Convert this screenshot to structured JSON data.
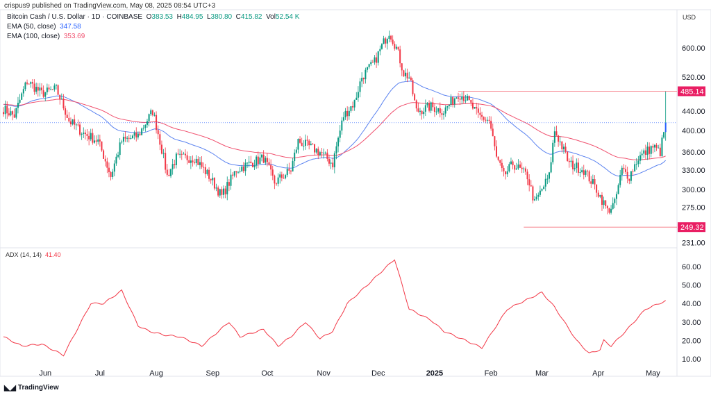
{
  "header": {
    "published": "crispus9 published on TradingView.com, May 08, 2025 08:54 UTC+3",
    "symbol": "Bitcoin Cash / U.S. Dollar · 1D · COINBASE",
    "o_label": "O",
    "o": "383.53",
    "h_label": "H",
    "h": "484.95",
    "l_label": "L",
    "l": "380.80",
    "c_label": "C",
    "c": "415.82",
    "vol_label": "Vol",
    "vol": "52.54 K",
    "ema50_label": "EMA (50, close)",
    "ema50": "347.58",
    "ema100_label": "EMA (100, close)",
    "ema100": "353.69"
  },
  "currency": "USD",
  "adx_label": "ADX (14, 14)",
  "adx_value": "41.40",
  "brand": "TradingView",
  "colors": {
    "up": "#089981",
    "down": "#f23645",
    "ema50": "#5b83f0",
    "ema100": "#f0506e",
    "adx": "#f23645",
    "last": "#2962ff"
  },
  "chart_data": {
    "type": "candlestick",
    "price_axis": {
      "scale": "log",
      "ticks": [
        "600.00",
        "520.00",
        "440.00",
        "400.00",
        "360.00",
        "330.00",
        "300.00",
        "275.00",
        "231.00"
      ],
      "marked": [
        "485.14",
        "249.32"
      ],
      "last": 415.82
    },
    "x_ticks": [
      "Jun",
      "Jul",
      "Aug",
      "Sep",
      "Oct",
      "Nov",
      "Dec",
      "2025",
      "Feb",
      "Mar",
      "Apr",
      "May"
    ],
    "price_path_day_close": [
      [
        0,
        445
      ],
      [
        6,
        430
      ],
      [
        13,
        510
      ],
      [
        21,
        480
      ],
      [
        29,
        490
      ],
      [
        36,
        420
      ],
      [
        44,
        395
      ],
      [
        52,
        380
      ],
      [
        59,
        320
      ],
      [
        65,
        380
      ],
      [
        74,
        390
      ],
      [
        82,
        440
      ],
      [
        90,
        320
      ],
      [
        95,
        350
      ],
      [
        105,
        350
      ],
      [
        113,
        320
      ],
      [
        120,
        290
      ],
      [
        128,
        330
      ],
      [
        135,
        340
      ],
      [
        143,
        350
      ],
      [
        149,
        310
      ],
      [
        158,
        330
      ],
      [
        162,
        380
      ],
      [
        174,
        360
      ],
      [
        181,
        340
      ],
      [
        187,
        430
      ],
      [
        193,
        460
      ],
      [
        197,
        520
      ],
      [
        204,
        560
      ],
      [
        212,
        650
      ],
      [
        216,
        600
      ],
      [
        220,
        530
      ],
      [
        223,
        520
      ],
      [
        227,
        440
      ],
      [
        235,
        450
      ],
      [
        242,
        440
      ],
      [
        250,
        480
      ],
      [
        254,
        470
      ],
      [
        261,
        430
      ],
      [
        267,
        420
      ],
      [
        271,
        350
      ],
      [
        275,
        320
      ],
      [
        280,
        340
      ],
      [
        288,
        320
      ],
      [
        292,
        280
      ],
      [
        300,
        320
      ],
      [
        303,
        400
      ],
      [
        311,
        340
      ],
      [
        319,
        330
      ],
      [
        326,
        300
      ],
      [
        332,
        270
      ],
      [
        336,
        280
      ],
      [
        340,
        330
      ],
      [
        344,
        320
      ],
      [
        349,
        350
      ],
      [
        357,
        370
      ],
      [
        361,
        360
      ],
      [
        364,
        415.82
      ]
    ],
    "adx_axis": {
      "ticks": [
        "60.00",
        "50.00",
        "40.00",
        "30.00",
        "20.00",
        "10.00"
      ]
    },
    "adx_path_day_value": [
      [
        0,
        22
      ],
      [
        10,
        17
      ],
      [
        21,
        18
      ],
      [
        33,
        12
      ],
      [
        40,
        25
      ],
      [
        48,
        40
      ],
      [
        55,
        40
      ],
      [
        65,
        47
      ],
      [
        74,
        28
      ],
      [
        80,
        25
      ],
      [
        88,
        23
      ],
      [
        97,
        22
      ],
      [
        109,
        17
      ],
      [
        124,
        30
      ],
      [
        130,
        22
      ],
      [
        143,
        26
      ],
      [
        151,
        17
      ],
      [
        158,
        22
      ],
      [
        166,
        30
      ],
      [
        174,
        21
      ],
      [
        181,
        25
      ],
      [
        189,
        40
      ],
      [
        200,
        50
      ],
      [
        215,
        64
      ],
      [
        223,
        37
      ],
      [
        235,
        31
      ],
      [
        242,
        25
      ],
      [
        254,
        20
      ],
      [
        263,
        16
      ],
      [
        269,
        25
      ],
      [
        277,
        37
      ],
      [
        296,
        46
      ],
      [
        303,
        38
      ],
      [
        315,
        20
      ],
      [
        322,
        13
      ],
      [
        328,
        15
      ],
      [
        330,
        20
      ],
      [
        334,
        17
      ],
      [
        342,
        25
      ],
      [
        353,
        37
      ],
      [
        364,
        41.4
      ]
    ]
  }
}
